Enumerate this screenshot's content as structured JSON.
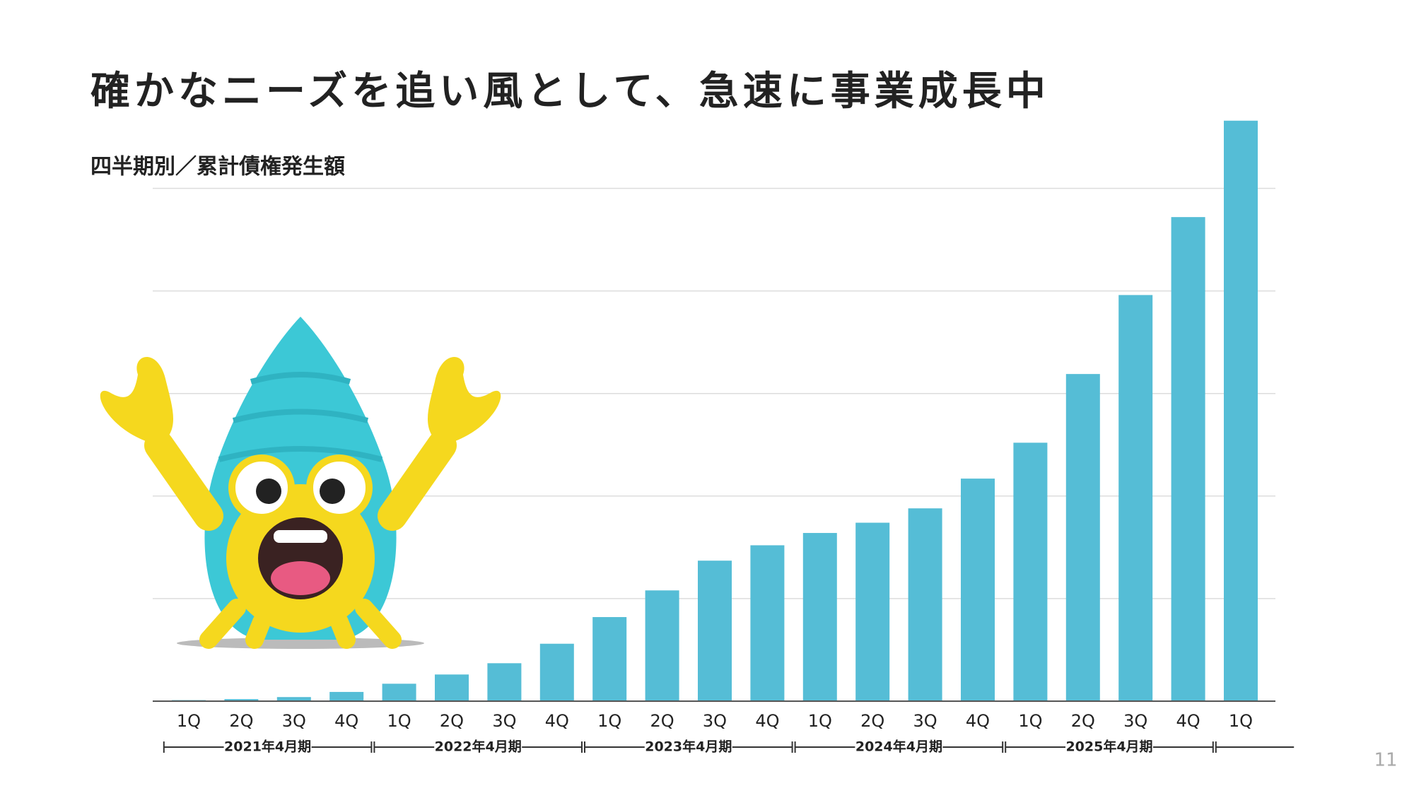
{
  "chart_data": {
    "type": "bar",
    "title": "確かなニーズを追い風として、急速に事業成長中",
    "subtitle": "四半期別／累計債権発生額",
    "categories": [
      "1Q",
      "2Q",
      "3Q",
      "4Q",
      "1Q",
      "2Q",
      "3Q",
      "4Q",
      "1Q",
      "2Q",
      "3Q",
      "4Q",
      "1Q",
      "2Q",
      "3Q",
      "4Q",
      "1Q",
      "2Q",
      "3Q",
      "4Q",
      "1Q"
    ],
    "values": [
      0.01,
      0.02,
      0.04,
      0.09,
      0.17,
      0.26,
      0.37,
      0.56,
      0.82,
      1.08,
      1.37,
      1.52,
      1.64,
      1.74,
      1.88,
      2.17,
      2.52,
      3.19,
      3.96,
      4.72,
      5.66
    ],
    "groups": [
      "2021年4月期",
      "2022年4月期",
      "2023年4月期",
      "2024年4月期",
      "2025年4月期",
      null
    ],
    "color": "#55bdd6",
    "ylim": [
      0,
      6
    ],
    "grid": [
      1,
      2,
      3,
      4,
      5
    ],
    "page_number": "11"
  }
}
